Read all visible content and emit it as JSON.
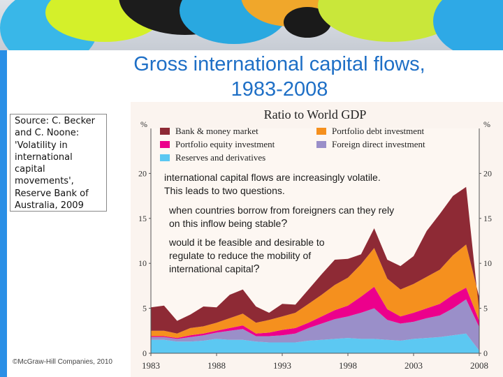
{
  "slide": {
    "title_line1": "Gross international capital flows,",
    "title_line2": "1983-2008",
    "source_text": "Source: C. Becker and C. Noone: 'Volatility in international capital movements', Reserve Bank of Australia, 2009",
    "copyright": "©McGraw-Hill Companies, 2010",
    "overlay_line1": "international capital flows are increasingly volatile.",
    "overlay_line2": "This leads to two questions.",
    "question1": "when countries borrow from foreigners can they rely on this inflow being stable",
    "question2": "would it be feasible and desirable to regulate to reduce the mobility of international capital",
    "question_mark": "?"
  },
  "colors": {
    "title": "#1e6fc6",
    "left_bar": "#2a8fe6",
    "bank": "#8e2a35",
    "portfolio_debt": "#f5901e",
    "portfolio_equity": "#ec008c",
    "fdi": "#9a8fc9",
    "reserves": "#5cc8f2"
  },
  "chart_data": {
    "type": "area",
    "stacked": true,
    "title": "Ratio to World GDP",
    "ylabel": "%",
    "ylim": [
      0,
      25
    ],
    "yticks": [
      0,
      5,
      10,
      15,
      20
    ],
    "xticks": [
      1983,
      1988,
      1993,
      1998,
      2003,
      2008
    ],
    "x": [
      1983,
      1984,
      1985,
      1986,
      1987,
      1988,
      1989,
      1990,
      1991,
      1992,
      1993,
      1994,
      1995,
      1996,
      1997,
      1998,
      1999,
      2000,
      2001,
      2002,
      2003,
      2004,
      2005,
      2006,
      2007,
      2008
    ],
    "legend_position": "top",
    "series": [
      {
        "name": "Reserves and derivatives",
        "values": [
          1.5,
          1.5,
          1.3,
          1.3,
          1.4,
          1.6,
          1.5,
          1.5,
          1.3,
          1.2,
          1.2,
          1.2,
          1.4,
          1.5,
          1.6,
          1.7,
          1.6,
          1.6,
          1.5,
          1.4,
          1.6,
          1.7,
          1.8,
          2.0,
          2.2,
          0.3
        ]
      },
      {
        "name": "Foreign direct investment",
        "values": [
          0.3,
          0.3,
          0.3,
          0.5,
          0.6,
          0.7,
          1.0,
          1.2,
          0.6,
          0.7,
          0.8,
          1.0,
          1.4,
          1.8,
          2.2,
          2.4,
          2.9,
          3.4,
          2.2,
          1.9,
          1.9,
          2.2,
          2.4,
          3.0,
          3.8,
          2.6
        ]
      },
      {
        "name": "Portfolio equity investment",
        "values": [
          0.1,
          0.1,
          0.1,
          0.2,
          0.2,
          0.2,
          0.3,
          0.4,
          0.3,
          0.4,
          0.6,
          0.6,
          0.6,
          0.8,
          1.0,
          1.2,
          1.8,
          2.4,
          1.2,
          0.8,
          1.0,
          1.1,
          1.3,
          1.5,
          1.3,
          0.7
        ]
      },
      {
        "name": "Portfolio debt investment",
        "values": [
          0.6,
          0.6,
          0.5,
          0.8,
          0.8,
          0.9,
          1.1,
          1.3,
          1.2,
          1.4,
          1.5,
          1.7,
          2.1,
          2.4,
          2.8,
          3.1,
          3.6,
          4.3,
          3.4,
          3.0,
          3.2,
          3.5,
          3.8,
          4.4,
          4.8,
          2.6
        ]
      },
      {
        "name": "Bank & money market",
        "values": [
          2.6,
          2.8,
          1.4,
          1.5,
          2.2,
          1.7,
          2.6,
          2.7,
          1.8,
          0.8,
          1.4,
          0.9,
          1.6,
          2.3,
          2.8,
          2.1,
          1.1,
          2.2,
          2.1,
          2.6,
          3.1,
          5.1,
          6.2,
          6.6,
          6.4,
          -1.6
        ]
      }
    ]
  }
}
